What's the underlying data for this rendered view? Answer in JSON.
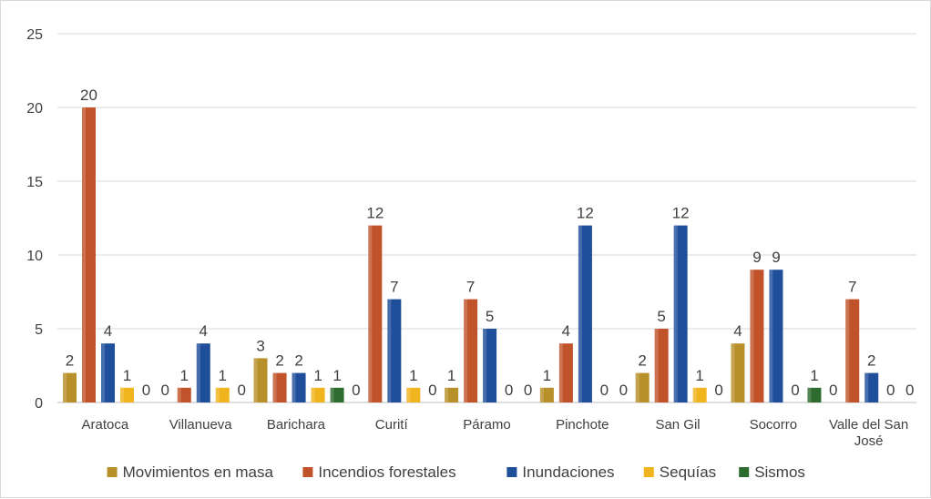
{
  "chart_data": {
    "type": "bar",
    "title": "",
    "xlabel": "",
    "ylabel": "",
    "ylim": [
      0,
      25
    ],
    "yticks": [
      0,
      5,
      10,
      15,
      20,
      25
    ],
    "grid": true,
    "legend_position": "bottom",
    "categories": [
      "Aratoca",
      "Villanueva",
      "Barichara",
      "Curití",
      "Páramo",
      "Pinchote",
      "San Gil",
      "Socorro",
      "Valle del San José"
    ],
    "series": [
      {
        "name": "Movimientos en masa",
        "color": "#b8902a",
        "values": [
          2,
          0,
          3,
          0,
          1,
          1,
          2,
          4,
          0
        ]
      },
      {
        "name": "Incendios forestales",
        "color": "#c0532a",
        "values": [
          20,
          1,
          2,
          12,
          7,
          4,
          5,
          9,
          7
        ]
      },
      {
        "name": "Inundaciones",
        "color": "#1f4e9a",
        "values": [
          4,
          4,
          2,
          7,
          5,
          12,
          12,
          9,
          2
        ]
      },
      {
        "name": "Sequías",
        "color": "#f0b41e",
        "values": [
          1,
          1,
          1,
          1,
          0,
          0,
          1,
          0,
          0
        ]
      },
      {
        "name": "Sismos",
        "color": "#2e6b2e",
        "values": [
          0,
          0,
          1,
          0,
          0,
          0,
          0,
          1,
          0
        ]
      }
    ]
  }
}
